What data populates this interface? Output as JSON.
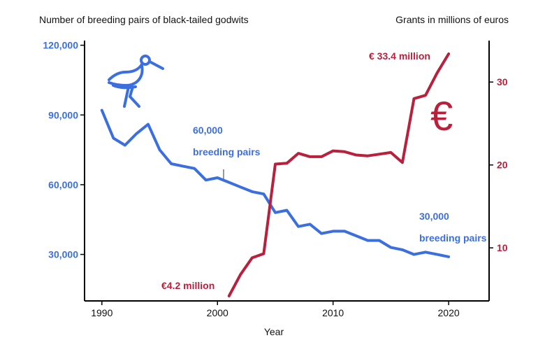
{
  "chart_data": {
    "type": "line",
    "left_axis_title": "Number of breeding pairs of black-tailed godwits",
    "right_axis_title": "Grants in millions of euros",
    "xlabel": "Year",
    "x_ticks": [
      "1990",
      "2000",
      "2010",
      "2020"
    ],
    "y_left_ticks": [
      "30,000",
      "60,000",
      "90,000",
      "120,000"
    ],
    "y_right_ticks": [
      "10",
      "20",
      "30"
    ],
    "y_left_lim": [
      10000,
      122000
    ],
    "y_right_lim": [
      3.6,
      35.0
    ],
    "x_lim": [
      1988.5,
      2023.5
    ],
    "colors": {
      "pairs": "#3b6fe0",
      "grants": "#b8203c",
      "axis": "#000000"
    },
    "series": [
      {
        "key": "pairs",
        "axis": "left",
        "x": [
          1990,
          1991,
          1992,
          1993,
          1994,
          1995,
          1996,
          1997,
          1998,
          1999,
          2000,
          2001,
          2002,
          2003,
          2004,
          2005,
          2006,
          2007,
          2008,
          2009,
          2010,
          2011,
          2012,
          2013,
          2014,
          2015,
          2016,
          2017,
          2018,
          2019,
          2020
        ],
        "values": [
          92000,
          80000,
          77000,
          82000,
          86000,
          75000,
          69000,
          68000,
          67000,
          62000,
          63000,
          61000,
          59000,
          57000,
          56000,
          48000,
          49000,
          42000,
          43000,
          39000,
          40000,
          40000,
          38000,
          36000,
          36000,
          33000,
          32000,
          30000,
          31000,
          30000,
          29000
        ]
      },
      {
        "key": "grants",
        "axis": "right",
        "x": [
          2001,
          2002,
          2003,
          2004,
          2005,
          2006,
          2007,
          2008,
          2009,
          2010,
          2011,
          2012,
          2013,
          2014,
          2015,
          2016,
          2017,
          2018,
          2019,
          2020
        ],
        "values": [
          4.2,
          6.8,
          8.8,
          9.3,
          20.1,
          20.2,
          21.4,
          21.0,
          21.0,
          21.7,
          21.6,
          21.2,
          21.1,
          21.3,
          21.5,
          20.3,
          28.0,
          28.4,
          31.1,
          33.4
        ]
      }
    ],
    "annotations": {
      "pairs_2000_line1": "60,000",
      "pairs_2000_line2": "breeding pairs",
      "pairs_2020_line1": "30,000",
      "pairs_2020_line2": "breeding pairs",
      "grants_start": "€4.2 million",
      "grants_end": "€ 33.4 million"
    },
    "icons": [
      "godwit-bird-icon",
      "euro-icon"
    ]
  }
}
